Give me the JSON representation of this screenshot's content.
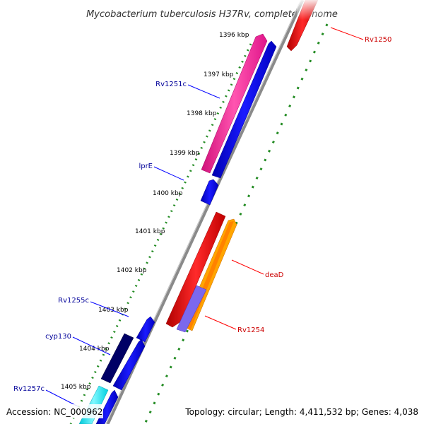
{
  "title": "Mycobacterium tuberculosis H37Rv, complete genome",
  "footer": {
    "accession": "Accession: NC_000962",
    "topology": "Topology: circular; Length: 4,411,532 bp; Genes: 4,038"
  },
  "ticks": [
    "1396 kbp",
    "1397 kbp",
    "1398 kbp",
    "1399 kbp",
    "1400 kbp",
    "1401 kbp",
    "1402 kbp",
    "1403 kbp",
    "1404 kbp",
    "1405 kbp"
  ],
  "genes": [
    {
      "name": "Rv1250",
      "color": "#cc0000"
    },
    {
      "name": "Rv1251c",
      "color": "#000099"
    },
    {
      "name": "lprE",
      "color": "#000099"
    },
    {
      "name": "deaD",
      "color": "#cc0000"
    },
    {
      "name": "Rv1254",
      "color": "#cc0000"
    },
    {
      "name": "Rv1255c",
      "color": "#000099"
    },
    {
      "name": "cyp130",
      "color": "#000099"
    },
    {
      "name": "Rv1257c",
      "color": "#000099"
    }
  ],
  "colors": {
    "forward_cds": "#ff0000",
    "reverse_cds": "#0000ee",
    "pink_feature": "#ff1493",
    "navy_feature": "#000066",
    "cyan_feature": "#00e5ee",
    "purple_feature": "#7b68ee",
    "orange_feature": "#ffa500",
    "backbone": "#888888",
    "dots": "#228b22"
  }
}
